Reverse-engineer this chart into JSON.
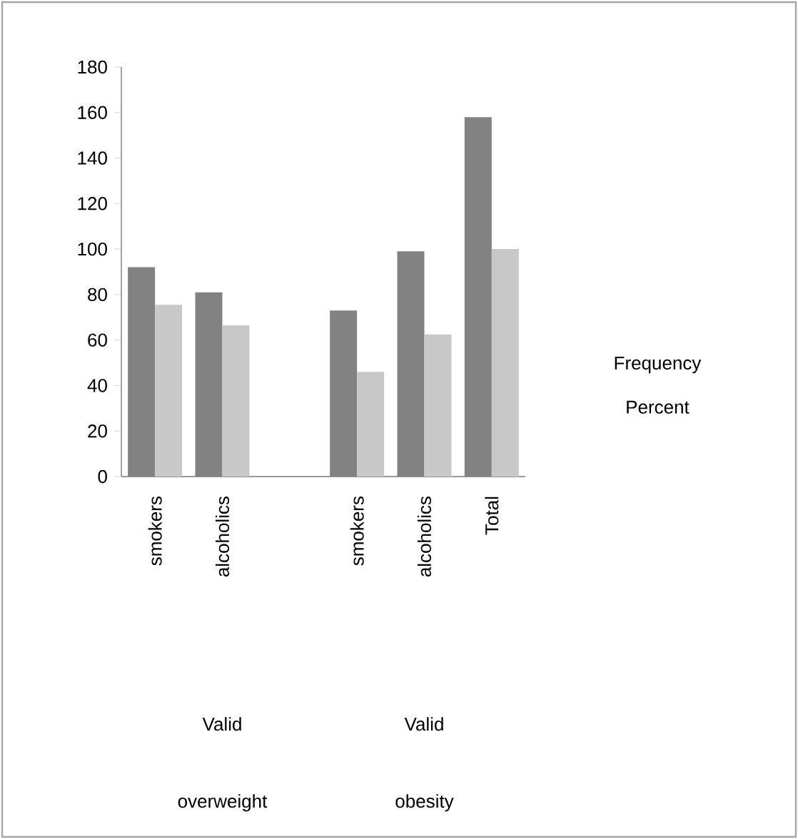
{
  "chart_data": {
    "type": "bar",
    "categories": [
      "smokers",
      "alcoholics",
      null,
      "smokers",
      "alcoholics",
      "Total"
    ],
    "series": [
      {
        "name": "Frequency",
        "color": "#828282",
        "values": [
          92,
          81,
          null,
          73,
          99,
          158
        ]
      },
      {
        "name": "Percent",
        "color": "#c8c8c8",
        "values": [
          75.5,
          66.5,
          null,
          46,
          62.5,
          100
        ]
      }
    ],
    "ylim": [
      0,
      180
    ],
    "yticks": [
      0,
      20,
      40,
      60,
      80,
      100,
      120,
      140,
      160,
      180
    ],
    "grid": false,
    "legend": "right",
    "annotations": [
      "Valid",
      "Valid",
      "overweight",
      "obesity"
    ]
  }
}
